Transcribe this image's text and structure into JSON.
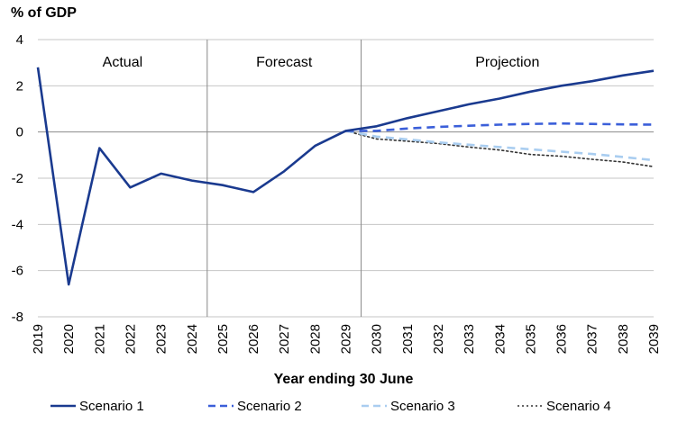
{
  "chart_data": {
    "type": "line",
    "unit_label": "% of GDP",
    "xlabel": "Year ending 30 June",
    "ylabel": "",
    "ylim": [
      -8,
      4
    ],
    "yticks": [
      4,
      2,
      0,
      -2,
      -4,
      -6,
      -8
    ],
    "categories": [
      "2019",
      "2020",
      "2021",
      "2022",
      "2023",
      "2024",
      "2025",
      "2026",
      "2027",
      "2028",
      "2029",
      "2030",
      "2031",
      "2032",
      "2033",
      "2034",
      "2035",
      "2036",
      "2037",
      "2038",
      "2039"
    ],
    "grid": "horizontal",
    "periods": [
      {
        "label": "Actual",
        "start": "2019",
        "end": "2024.5"
      },
      {
        "label": "Forecast",
        "start": "2024.5",
        "end": "2029.5"
      },
      {
        "label": "Projection",
        "start": "2029.5",
        "end": "2039"
      }
    ],
    "legend_position": "bottom",
    "series": [
      {
        "name": "Scenario 1",
        "style": "solid",
        "color": "#1a3a8f",
        "x": [
          "2019",
          "2020",
          "2021",
          "2022",
          "2023",
          "2024",
          "2025",
          "2026",
          "2027",
          "2028",
          "2029",
          "2030",
          "2031",
          "2032",
          "2033",
          "2034",
          "2035",
          "2036",
          "2037",
          "2038",
          "2039"
        ],
        "values": [
          2.8,
          -6.6,
          -0.7,
          -2.4,
          -1.8,
          -2.1,
          -2.3,
          -2.6,
          -1.7,
          -0.6,
          0.05,
          0.25,
          0.6,
          0.9,
          1.2,
          1.45,
          1.75,
          2.0,
          2.2,
          2.45,
          2.65
        ]
      },
      {
        "name": "Scenario 2",
        "style": "dashed",
        "color": "#3b5fd9",
        "x": [
          "2029",
          "2030",
          "2031",
          "2032",
          "2033",
          "2034",
          "2035",
          "2036",
          "2037",
          "2038",
          "2039"
        ],
        "values": [
          0.05,
          0.05,
          0.15,
          0.22,
          0.27,
          0.32,
          0.35,
          0.37,
          0.35,
          0.33,
          0.32
        ]
      },
      {
        "name": "Scenario 3",
        "style": "dashed",
        "color": "#a9cdf0",
        "x": [
          "2029",
          "2030",
          "2031",
          "2032",
          "2033",
          "2034",
          "2035",
          "2036",
          "2037",
          "2038",
          "2039"
        ],
        "values": [
          0.05,
          -0.2,
          -0.32,
          -0.45,
          -0.55,
          -0.65,
          -0.75,
          -0.85,
          -0.95,
          -1.08,
          -1.22
        ]
      },
      {
        "name": "Scenario 4",
        "style": "dotted",
        "color": "#333333",
        "x": [
          "2029",
          "2030",
          "2031",
          "2032",
          "2033",
          "2034",
          "2035",
          "2036",
          "2037",
          "2038",
          "2039"
        ],
        "values": [
          0.05,
          -0.3,
          -0.4,
          -0.5,
          -0.65,
          -0.78,
          -0.97,
          -1.05,
          -1.18,
          -1.3,
          -1.5
        ]
      }
    ]
  }
}
